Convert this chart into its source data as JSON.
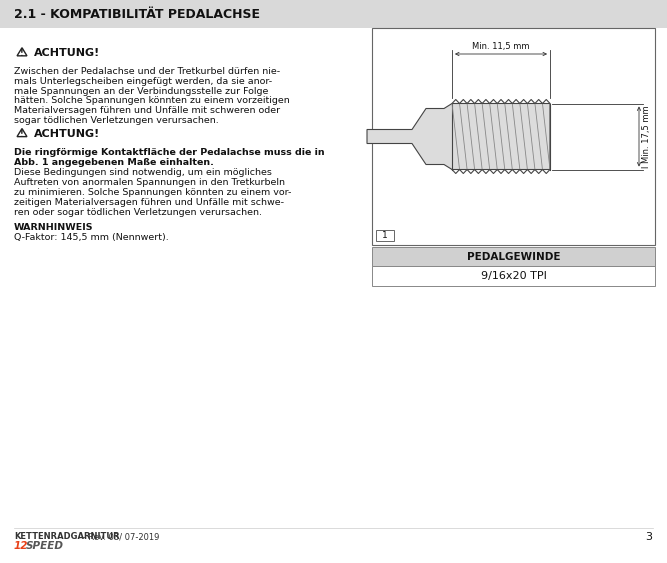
{
  "title": "2.1 - KOMPATIBILITÄT PEDALACHSE",
  "title_bg": "#d9d9d9",
  "page_bg": "#ffffff",
  "page_number": "3",
  "warning_label": "ACHTUNG!",
  "warning1_text_lines": [
    "Zwischen der Pedalachse und der Tretkurbel dürfen nie-",
    "mals Unterlegscheiben eingefügt werden, da sie anor-",
    "male Spannungen an der Verbindungsstelle zur Folge",
    "hätten. Solche Spannungen könnten zu einem vorzeitigen",
    "Materialversagen führen und Unfälle mit schweren oder",
    "sogar tödlichen Verletzungen verursachen."
  ],
  "warning2_label": "ACHTUNG!",
  "warning2_text1_lines": [
    "Die ringförmige Kontaktfläche der Pedalachse muss die in",
    "Abb. 1 angegebenen Maße einhalten."
  ],
  "warning2_text2_lines": [
    "Diese Bedingungen sind notwendig, um ein mögliches",
    "Auftreten von anormalen Spannungen in den Tretkurbeln",
    "zu minimieren. Solche Spannungen könnten zu einem vor-",
    "zeitigen Materialversagen führen und Unfälle mit schwe-",
    "ren oder sogar tödlichen Verletzungen verursachen."
  ],
  "warnhinweis_label": "WARNHINWEIS",
  "warnhinweis_text": "Q-Faktor: 145,5 mm (Nennwert).",
  "diagram_min_width": "Min. 11,5 mm",
  "diagram_min_height": "l Min. 17,5 mm",
  "diagram_label_1": "1",
  "table_header": "PEDALGEWINDE",
  "table_value": "9/16x20 TPI",
  "footer_left_bold": "KETTENRADGARNITUR",
  "footer_left_normal": " - Rev. 03/ 07-2019",
  "footer_logo": "12 SPEED",
  "footer_color_logo": "#e84118",
  "footer_color_text": "#333333",
  "border_color": "#888888",
  "diagram_bg": "#dcdcdc",
  "table_header_bg": "#d0d0d0",
  "table_border": "#888888"
}
